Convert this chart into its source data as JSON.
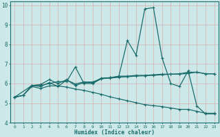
{
  "xlabel": "Humidex (Indice chaleur)",
  "ylabel": "",
  "xlim": [
    -0.5,
    23.5
  ],
  "ylim": [
    4,
    10.2
  ],
  "bg_color": "#cce8e8",
  "line_color": "#1a6b6b",
  "grid_color": "#e8c8c8",
  "line1_x": [
    0,
    1,
    2,
    3,
    4,
    5,
    6,
    7,
    8,
    9,
    10,
    11,
    12,
    13,
    14,
    15,
    16,
    17,
    18,
    19,
    20,
    21,
    22,
    23
  ],
  "line1_y": [
    5.3,
    5.4,
    5.9,
    5.9,
    6.0,
    6.1,
    6.1,
    6.85,
    6.0,
    6.0,
    6.25,
    6.3,
    6.35,
    8.2,
    7.45,
    9.82,
    9.88,
    7.3,
    6.0,
    5.85,
    6.65,
    4.85,
    4.45,
    4.45
  ],
  "line2_x": [
    0,
    1,
    2,
    3,
    4,
    5,
    6,
    7,
    8,
    9,
    10,
    11,
    12,
    13,
    14,
    15,
    16,
    17,
    18,
    19,
    20,
    21,
    22,
    23
  ],
  "line2_y": [
    5.3,
    5.4,
    5.9,
    5.95,
    6.2,
    6.0,
    6.2,
    5.9,
    6.05,
    6.05,
    6.28,
    6.3,
    6.38,
    6.38,
    6.42,
    6.42,
    6.45,
    6.48,
    6.48,
    6.5,
    6.58,
    6.58,
    6.5,
    6.5
  ],
  "line3_x": [
    0,
    1,
    2,
    3,
    4,
    5,
    6,
    7,
    8,
    9,
    10,
    11,
    12,
    13,
    14,
    15,
    16,
    17,
    18,
    19,
    20,
    21,
    22,
    23
  ],
  "line3_y": [
    5.3,
    5.4,
    5.85,
    5.75,
    5.88,
    5.88,
    5.82,
    5.72,
    5.65,
    5.55,
    5.45,
    5.32,
    5.22,
    5.12,
    5.02,
    4.92,
    4.87,
    4.82,
    4.75,
    4.68,
    4.68,
    4.58,
    4.48,
    4.48
  ],
  "line4_x": [
    0,
    2,
    3,
    4,
    5,
    6,
    7,
    8,
    9,
    10,
    11,
    12,
    13,
    14,
    15,
    16,
    17,
    18,
    19,
    20,
    21,
    22,
    23
  ],
  "line4_y": [
    5.3,
    5.9,
    5.85,
    6.05,
    5.85,
    6.18,
    5.98,
    6.08,
    6.08,
    6.25,
    6.28,
    6.32,
    6.35,
    6.38,
    6.4,
    6.42,
    6.45,
    6.48,
    6.48,
    6.52,
    6.58,
    6.5,
    6.5
  ],
  "xticks": [
    0,
    1,
    2,
    3,
    4,
    5,
    6,
    7,
    8,
    9,
    10,
    11,
    12,
    13,
    14,
    15,
    16,
    17,
    18,
    19,
    20,
    21,
    22,
    23
  ],
  "yticks": [
    4,
    5,
    6,
    7,
    8,
    9,
    10
  ]
}
